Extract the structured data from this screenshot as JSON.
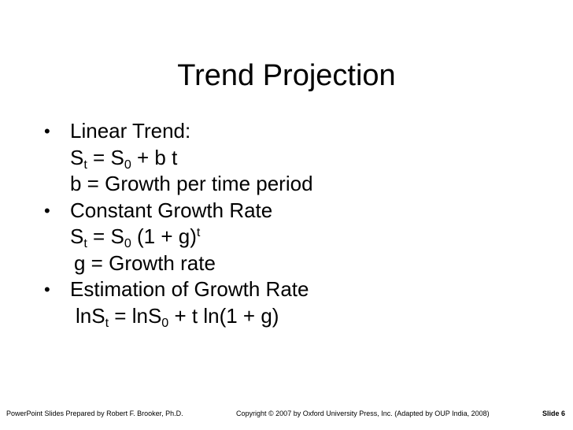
{
  "title": "Trend Projection",
  "items": [
    {
      "bullet": "•",
      "heading": "Linear Trend:",
      "formula1": {
        "a": "S",
        "a_sub": "t",
        "eq": " = ",
        "b": "S",
        "b_sub": "0",
        "rest": " + b t"
      },
      "desc": "b = Growth per time period"
    },
    {
      "bullet": "•",
      "heading": "Constant Growth Rate",
      "formula2": {
        "a": "S",
        "a_sub": "t",
        "eq": " = ",
        "b": "S",
        "b_sub": "0",
        "mid": " (1 + g)",
        "sup": "t"
      },
      "desc": "g = Growth rate"
    },
    {
      "bullet": "•",
      "heading": "Estimation of Growth Rate",
      "formula3": {
        "a": "lnS",
        "a_sub": "t",
        "eq": " = ",
        "b": "lnS",
        "b_sub": "0",
        "rest": " + t ln(1 + g)"
      }
    }
  ],
  "footer": {
    "left": "PowerPoint Slides Prepared by Robert F. Brooker, Ph.D.",
    "copyright_symbol": "©",
    "center": "Copyright  2007 by Oxford University Press, Inc. (Adapted by OUP India, 2008)",
    "center_prefix": "Copyright ",
    "center_suffix": " 2007 by Oxford University Press, Inc. (Adapted by OUP India, 2008)",
    "right": "Slide 6"
  }
}
